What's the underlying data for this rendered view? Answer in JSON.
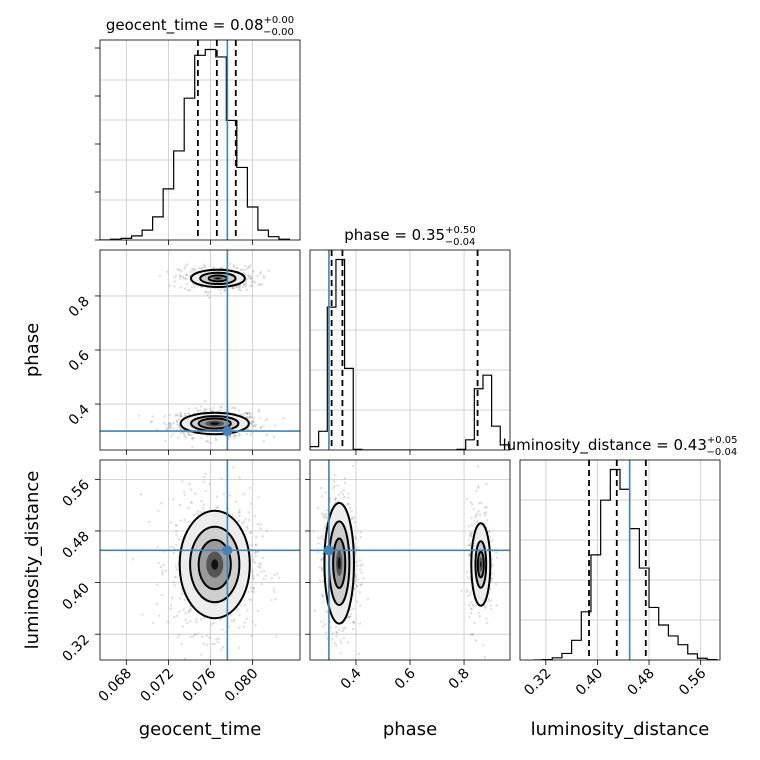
{
  "chart_data": {
    "type": "corner",
    "parameters": [
      {
        "name": "geocent_time",
        "xlabel": "geocent_time",
        "ylabel": "",
        "range": [
          0.0655,
          0.0845
        ],
        "ticks": [
          0.068,
          0.072,
          0.076,
          0.08
        ],
        "tick_labels": [
          "0.068",
          "0.072",
          "0.076",
          "0.080"
        ],
        "title": {
          "base": "geocent_time = 0.08",
          "sup": "+0.00",
          "sub": "−0.00"
        },
        "quantiles": [
          0.0748,
          0.0766,
          0.0784
        ],
        "truth": 0.0776,
        "hist_bins": [
          0.0655,
          0.0665,
          0.0675,
          0.0685,
          0.0695,
          0.0705,
          0.0715,
          0.0725,
          0.0735,
          0.0745,
          0.0755,
          0.0765,
          0.0775,
          0.0785,
          0.0795,
          0.0805,
          0.0815,
          0.0825,
          0.0835
        ],
        "hist_counts": [
          0,
          1,
          2,
          5,
          12,
          28,
          62,
          108,
          172,
          224,
          231,
          222,
          145,
          88,
          40,
          12,
          4,
          1
        ]
      },
      {
        "name": "phase",
        "xlabel": "phase",
        "ylabel": "phase",
        "range": [
          0.23,
          0.97
        ],
        "ticks": [
          0.4,
          0.6,
          0.8
        ],
        "tick_labels": [
          "0.4",
          "0.6",
          "0.8"
        ],
        "title": {
          "base": "phase = 0.35",
          "sup": "+0.50",
          "sub": "−0.04"
        },
        "quantiles": [
          0.31,
          0.35,
          0.85
        ],
        "truth": 0.3,
        "hist_bins": [
          0.23,
          0.262,
          0.294,
          0.326,
          0.358,
          0.39,
          0.422,
          0.454,
          0.486,
          0.518,
          0.55,
          0.582,
          0.614,
          0.646,
          0.678,
          0.71,
          0.742,
          0.774,
          0.806,
          0.838,
          0.87,
          0.902,
          0.934,
          0.966
        ],
        "hist_counts": [
          10,
          55,
          420,
          560,
          240,
          2,
          0,
          0,
          0,
          0,
          0,
          0,
          0,
          0,
          0,
          0,
          0,
          2,
          30,
          180,
          220,
          70,
          15
        ]
      },
      {
        "name": "luminosity_distance",
        "xlabel": "luminosity_distance",
        "ylabel": "luminosity_distance",
        "range": [
          0.28,
          0.59
        ],
        "ticks": [
          0.32,
          0.4,
          0.48,
          0.56
        ],
        "tick_labels": [
          "0.32",
          "0.40",
          "0.48",
          "0.56"
        ],
        "title": {
          "base": "luminosity_distance = 0.43",
          "sup": "+0.05",
          "sub": "−0.04"
        },
        "quantiles": [
          0.387,
          0.43,
          0.475
        ],
        "truth": 0.45,
        "hist_bins": [
          0.3,
          0.315,
          0.33,
          0.345,
          0.36,
          0.375,
          0.39,
          0.405,
          0.42,
          0.435,
          0.45,
          0.465,
          0.48,
          0.495,
          0.51,
          0.525,
          0.54,
          0.555,
          0.57,
          0.585
        ],
        "hist_counts": [
          0,
          1,
          5,
          15,
          45,
          110,
          240,
          365,
          435,
          390,
          300,
          210,
          120,
          80,
          55,
          35,
          14,
          4,
          1
        ]
      }
    ],
    "colors": {
      "truth": "#4682b4",
      "hist": "#000000",
      "quantile": "#000000",
      "grid": "#c8c8c8",
      "scatter": "#8a8a8a"
    },
    "grid": true,
    "quantile_style": "dashed"
  }
}
